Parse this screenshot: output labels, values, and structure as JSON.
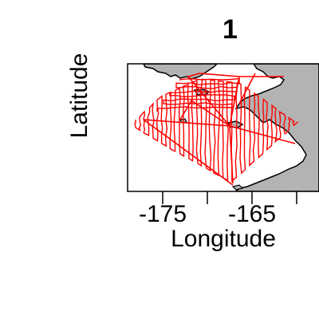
{
  "map": {
    "title": "1",
    "xlabel": "Longitude",
    "ylabel": "Latitude",
    "x_ticks": [
      {
        "value": -175,
        "label": "-175"
      },
      {
        "value": -170,
        "label": ""
      },
      {
        "value": -165,
        "label": "-165"
      },
      {
        "value": -160,
        "label": ""
      }
    ],
    "xlim": [
      -179.0,
      -158.5
    ],
    "ylim": [
      53.2,
      59.2
    ],
    "colors": {
      "track": "#ff0000",
      "land": "#b3b3b3",
      "coast": "#000000",
      "frame": "#000000"
    }
  }
}
